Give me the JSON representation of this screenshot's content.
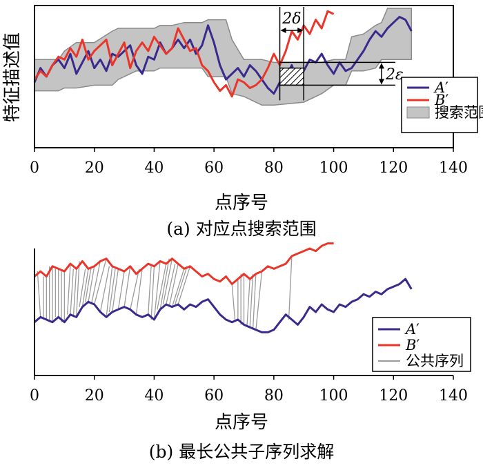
{
  "colors": {
    "series_a": "#3a2a8c",
    "series_b": "#e8372a",
    "band_fill": "#c4c4c4",
    "band_edge": "#8a8a8a",
    "match_lines": "#9a9a9a",
    "axis": "#000000"
  },
  "chart_data": [
    {
      "type": "line",
      "id": "a",
      "caption": "(a) 对应点搜索范围",
      "xlabel": "点序号",
      "ylabel": "特征描述值",
      "xlim": [
        0,
        140
      ],
      "ylim": [
        0,
        10
      ],
      "xticks": [
        0,
        20,
        40,
        60,
        80,
        100,
        120,
        140
      ],
      "xtick_labels": [
        "0",
        "20",
        "40",
        "60",
        "80",
        "100",
        "120",
        "140"
      ],
      "legend_position": "right",
      "series": [
        {
          "name": "A′",
          "label_main": "A",
          "label_mark": "′",
          "x": [
            0,
            2,
            4,
            6,
            8,
            10,
            12,
            14,
            16,
            18,
            20,
            22,
            24,
            26,
            28,
            30,
            32,
            34,
            36,
            38,
            40,
            42,
            44,
            46,
            48,
            50,
            52,
            54,
            56,
            58,
            60,
            62,
            64,
            66,
            68,
            70,
            72,
            74,
            76,
            78,
            80,
            82,
            84,
            86,
            88,
            90,
            92,
            94,
            96,
            98,
            100,
            102,
            104,
            106,
            108,
            110,
            112,
            114,
            116,
            118,
            120,
            122,
            124,
            126
          ],
          "y": [
            4.6,
            5.6,
            5.0,
            5.8,
            6.2,
            5.6,
            6.6,
            5.2,
            6.0,
            6.8,
            5.6,
            6.2,
            5.4,
            6.6,
            6.4,
            6.8,
            7.2,
            5.8,
            5.2,
            6.4,
            6.2,
            7.4,
            6.6,
            7.0,
            7.6,
            7.0,
            7.6,
            6.6,
            7.2,
            8.6,
            7.4,
            5.8,
            4.8,
            5.2,
            5.6,
            5.0,
            5.8,
            5.4,
            4.8,
            4.2,
            3.8,
            4.6,
            5.0,
            5.8,
            4.6,
            5.4,
            6.2,
            6.0,
            6.6,
            5.8,
            5.2,
            6.0,
            5.4,
            5.6,
            6.2,
            6.8,
            7.6,
            8.2,
            7.8,
            8.4,
            8.8,
            9.2,
            9.0,
            8.2
          ]
        },
        {
          "name": "B′",
          "label_main": "B",
          "label_mark": "′",
          "x": [
            0,
            2,
            4,
            6,
            8,
            10,
            12,
            14,
            16,
            18,
            20,
            22,
            24,
            26,
            28,
            30,
            32,
            34,
            36,
            38,
            40,
            42,
            44,
            46,
            48,
            50,
            52,
            54,
            56,
            58,
            60,
            62,
            64,
            66,
            68,
            70,
            72,
            74,
            76,
            78,
            80,
            82,
            84,
            86,
            88,
            90,
            92,
            94,
            96,
            98,
            100
          ],
          "y": [
            4.8,
            5.4,
            5.0,
            5.8,
            6.4,
            6.2,
            7.0,
            6.4,
            7.6,
            6.2,
            6.8,
            7.2,
            7.6,
            5.8,
            6.6,
            7.4,
            5.6,
            6.8,
            7.4,
            6.8,
            7.8,
            7.2,
            6.6,
            7.0,
            8.4,
            7.6,
            6.8,
            7.0,
            5.8,
            5.4,
            4.6,
            4.0,
            4.4,
            3.6,
            4.8,
            4.6,
            4.2,
            4.4,
            4.8,
            5.6,
            6.6,
            5.8,
            6.8,
            8.2,
            7.6,
            8.6,
            8.0,
            9.0,
            8.4,
            9.6,
            9.4
          ]
        }
      ],
      "band": {
        "name": "搜索范围",
        "x_upper": [
          0,
          4,
          8,
          10,
          14,
          20,
          26,
          28,
          34,
          40,
          42,
          46,
          50,
          56,
          58,
          64,
          66,
          70,
          76,
          80,
          90,
          96,
          100,
          104,
          106,
          110,
          114,
          116,
          118,
          122,
          126
        ],
        "upper": [
          6.2,
          6.2,
          6.2,
          6.8,
          7.4,
          7.4,
          8.2,
          8.4,
          8.4,
          8.4,
          8.6,
          8.6,
          8.8,
          8.8,
          9.0,
          9.0,
          7.6,
          6.2,
          6.2,
          6.0,
          6.0,
          6.0,
          6.2,
          6.2,
          7.8,
          8.0,
          8.6,
          8.8,
          9.8,
          9.8,
          9.8
        ],
        "x_lower": [
          0,
          4,
          8,
          10,
          14,
          20,
          26,
          28,
          34,
          40,
          42,
          46,
          50,
          56,
          58,
          64,
          66,
          70,
          76,
          80,
          90,
          96,
          100,
          104,
          106,
          110,
          114,
          116,
          118,
          122,
          126
        ],
        "lower": [
          4.0,
          4.0,
          4.0,
          4.2,
          4.2,
          4.4,
          4.4,
          4.8,
          5.4,
          5.4,
          5.6,
          5.6,
          5.6,
          5.6,
          5.0,
          5.0,
          3.8,
          3.6,
          3.0,
          3.0,
          3.2,
          3.8,
          4.4,
          4.4,
          5.4,
          5.4,
          5.6,
          6.2,
          6.2,
          6.2,
          6.2
        ]
      },
      "annotations": [
        {
          "label": "2δ",
          "kind": "width",
          "x_from": 82,
          "x_to": 90,
          "y": 10.0
        },
        {
          "label": "2ε",
          "kind": "height",
          "x": 116,
          "y_from": 4.4,
          "y_to": 6.0
        },
        {
          "label": "",
          "kind": "hatched_box",
          "x_from": 82,
          "x_to": 90,
          "y_from": 4.4,
          "y_to": 5.6
        }
      ],
      "annotation_labels": {
        "delta": "2δ",
        "epsilon": "2ε"
      }
    },
    {
      "type": "line",
      "id": "b",
      "caption": "(b) 最长公共子序列求解",
      "xlabel": "点序号",
      "xlim": [
        0,
        140
      ],
      "ylim": [
        0,
        10
      ],
      "xticks": [
        0,
        20,
        40,
        60,
        80,
        100,
        120,
        140
      ],
      "xtick_labels": [
        "0",
        "20",
        "40",
        "60",
        "80",
        "100",
        "120",
        "140"
      ],
      "legend_position": "right",
      "series": [
        {
          "name": "A′",
          "label_main": "A",
          "label_mark": "′",
          "x": [
            0,
            2,
            4,
            6,
            8,
            10,
            12,
            14,
            16,
            18,
            20,
            22,
            24,
            26,
            28,
            30,
            32,
            34,
            36,
            38,
            40,
            42,
            44,
            46,
            48,
            50,
            52,
            54,
            56,
            58,
            60,
            62,
            64,
            66,
            68,
            70,
            72,
            74,
            76,
            78,
            80,
            82,
            84,
            86,
            88,
            90,
            92,
            94,
            96,
            98,
            100,
            102,
            104,
            106,
            108,
            110,
            112,
            114,
            116,
            118,
            120,
            122,
            124,
            126
          ],
          "y": [
            4.2,
            4.6,
            4.4,
            4.2,
            4.6,
            4.2,
            4.8,
            4.6,
            5.4,
            5.8,
            5.6,
            5.0,
            4.6,
            5.0,
            5.2,
            5.4,
            5.2,
            4.8,
            4.6,
            4.8,
            4.4,
            5.2,
            5.6,
            5.4,
            5.6,
            5.2,
            5.6,
            5.4,
            5.8,
            6.0,
            5.4,
            4.8,
            4.4,
            4.2,
            4.4,
            4.0,
            3.8,
            3.6,
            3.4,
            3.4,
            3.6,
            4.2,
            4.8,
            4.4,
            4.0,
            4.6,
            5.4,
            5.0,
            5.6,
            5.2,
            5.0,
            5.6,
            5.4,
            5.8,
            6.0,
            6.4,
            6.2,
            6.6,
            6.4,
            6.8,
            7.0,
            7.2,
            7.6,
            6.8
          ]
        },
        {
          "name": "B′",
          "label_main": "B",
          "label_mark": "′",
          "x": [
            0,
            2,
            4,
            6,
            8,
            10,
            12,
            14,
            16,
            18,
            20,
            22,
            24,
            26,
            28,
            30,
            32,
            34,
            36,
            38,
            40,
            42,
            44,
            46,
            48,
            50,
            52,
            54,
            56,
            58,
            60,
            62,
            64,
            66,
            68,
            70,
            72,
            74,
            76,
            78,
            80,
            82,
            84,
            86,
            88,
            90,
            92,
            94,
            96,
            98,
            100
          ],
          "y": [
            7.8,
            8.2,
            7.8,
            8.6,
            8.4,
            8.2,
            8.8,
            8.4,
            9.0,
            8.4,
            8.6,
            9.0,
            9.2,
            8.6,
            8.4,
            8.2,
            8.6,
            8.0,
            8.4,
            8.8,
            8.6,
            9.0,
            8.8,
            9.2,
            8.8,
            8.4,
            8.6,
            8.2,
            7.8,
            8.0,
            7.6,
            7.4,
            7.8,
            7.2,
            7.6,
            8.0,
            7.6,
            8.0,
            8.2,
            8.6,
            8.4,
            8.6,
            8.8,
            9.4,
            9.6,
            9.8,
            10.0,
            9.8,
            10.2,
            10.4,
            10.4
          ]
        }
      ],
      "match_lines_label": "公共序列",
      "matches": [
        [
          2,
          1
        ],
        [
          3,
          3
        ],
        [
          4,
          4
        ],
        [
          5,
          5
        ],
        [
          6,
          6
        ],
        [
          7,
          7
        ],
        [
          8,
          8
        ],
        [
          9,
          9
        ],
        [
          10,
          10
        ],
        [
          11,
          12
        ],
        [
          12,
          13
        ],
        [
          13,
          14
        ],
        [
          14,
          15
        ],
        [
          15,
          17
        ],
        [
          16,
          18
        ],
        [
          17,
          19
        ],
        [
          18,
          20
        ],
        [
          19,
          22
        ],
        [
          20,
          24
        ],
        [
          22,
          25
        ],
        [
          24,
          26
        ],
        [
          25,
          27
        ],
        [
          26,
          28
        ],
        [
          28,
          30
        ],
        [
          30,
          32
        ],
        [
          32,
          35
        ],
        [
          34,
          36
        ],
        [
          38,
          39
        ],
        [
          39,
          40
        ],
        [
          40,
          42
        ],
        [
          41,
          44
        ],
        [
          42,
          45
        ],
        [
          43,
          46
        ],
        [
          44,
          47
        ],
        [
          45,
          48
        ],
        [
          46,
          50
        ],
        [
          47,
          51
        ],
        [
          48,
          52
        ],
        [
          67,
          66
        ],
        [
          68,
          68
        ],
        [
          69,
          69
        ],
        [
          70,
          70
        ],
        [
          71,
          72
        ],
        [
          72,
          73
        ],
        [
          73,
          74
        ],
        [
          74,
          76
        ],
        [
          85,
          86
        ]
      ]
    }
  ]
}
